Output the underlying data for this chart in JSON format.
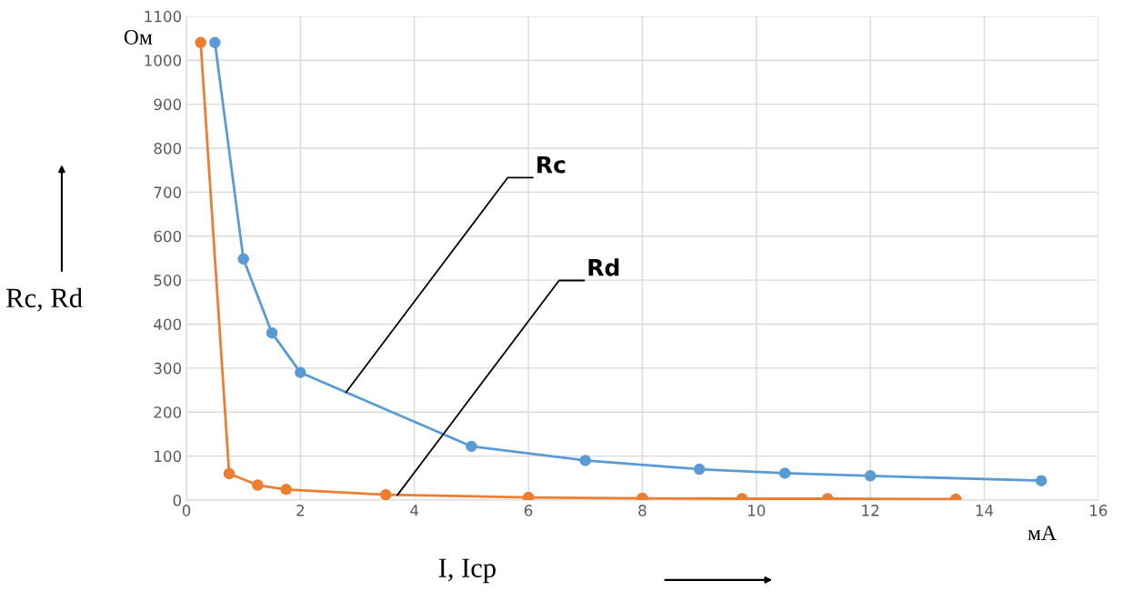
{
  "chart_data": {
    "type": "line",
    "xlabel": "I, Icp",
    "ylabel": "Rc, Rd",
    "series": [
      {
        "color": "#5b9bd5",
        "x": [
          0.5,
          1,
          1.5,
          2,
          5,
          7,
          9,
          10.5,
          12,
          15
        ],
        "values": [
          1040,
          548,
          380,
          290,
          122,
          90,
          70,
          61,
          55,
          44
        ]
      },
      {
        "color": "#ed7d31",
        "x": [
          0.25,
          0.75,
          1.25,
          1.75,
          3.5,
          6,
          8,
          9.75,
          11.25,
          13.5
        ],
        "values": [
          1040,
          60,
          34,
          24,
          12,
          6,
          4,
          3,
          3,
          2
        ]
      }
    ],
    "xlim": [
      0,
      16
    ],
    "xticks": [
      0,
      2,
      4,
      6,
      8,
      10,
      12,
      14,
      16
    ],
    "ylim": [
      0,
      1100
    ],
    "yticks": [
      0,
      100,
      200,
      300,
      400,
      500,
      600,
      700,
      800,
      900,
      1000,
      1100
    ],
    "grid": true,
    "marker": "circle",
    "line_style": "solid",
    "annotations": [
      "Ом",
      "мА",
      {
        "text": "Rc",
        "x": 2.8,
        "y": 245
      },
      {
        "text": "Rd",
        "x": 3.7,
        "y": 11
      }
    ]
  }
}
